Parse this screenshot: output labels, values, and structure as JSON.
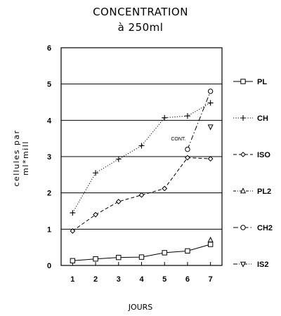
{
  "chart_data": {
    "type": "line",
    "title": [
      "CONCENTRATION",
      "à 250ml"
    ],
    "xlabel": "JOURS",
    "ylabel": "cellules par ml*mill",
    "ylim": [
      0,
      6
    ],
    "xlim": [
      0.5,
      7.5
    ],
    "x_ticks": [
      "1",
      "2",
      "3",
      "4",
      "5",
      "6",
      "7"
    ],
    "y_ticks": [
      "0",
      "1",
      "2",
      "3",
      "4",
      "5",
      "6"
    ],
    "grid": "horizontal",
    "legend_position": "right",
    "annotations": [
      {
        "text": "CONT.",
        "x": 5.6,
        "y": 3.45
      }
    ],
    "series": [
      {
        "name": "PL",
        "marker": "square",
        "dash": "solid",
        "x": [
          1,
          2,
          3,
          4,
          5,
          6,
          7
        ],
        "y": [
          0.13,
          0.18,
          0.22,
          0.23,
          0.35,
          0.4,
          0.58
        ]
      },
      {
        "name": "CH",
        "marker": "plus",
        "dash": "dotted",
        "x": [
          1,
          2,
          3,
          4,
          5,
          6,
          7
        ],
        "y": [
          1.45,
          2.55,
          2.93,
          3.3,
          4.07,
          4.12,
          4.48
        ]
      },
      {
        "name": "ISO",
        "marker": "diamond",
        "dash": "dashed",
        "x": [
          1,
          2,
          3,
          4,
          5,
          6,
          7
        ],
        "y": [
          0.95,
          1.4,
          1.76,
          1.94,
          2.12,
          2.97,
          2.94
        ]
      },
      {
        "name": "PL2",
        "marker": "triangle",
        "dash": "dashdot-fine",
        "x": [
          7
        ],
        "y": [
          0.7
        ]
      },
      {
        "name": "CH2",
        "marker": "circle",
        "dash": "dashdot",
        "x": [
          6,
          7
        ],
        "y": [
          3.2,
          4.8
        ]
      },
      {
        "name": "IS2",
        "marker": "tri-down",
        "dash": "dashdotdot",
        "x": [
          7
        ],
        "y": [
          3.82
        ]
      }
    ]
  }
}
